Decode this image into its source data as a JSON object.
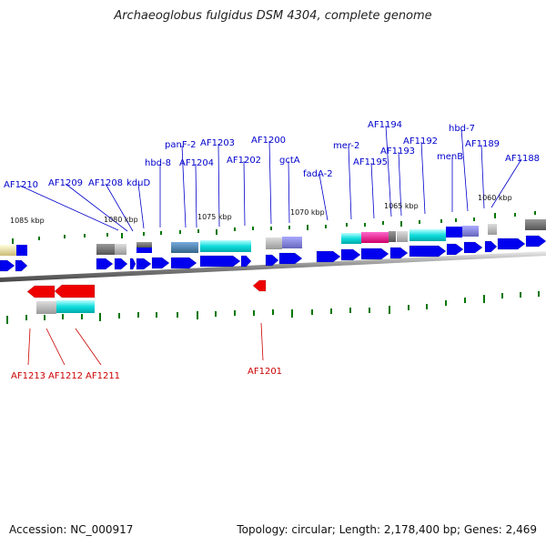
{
  "header": {
    "title": "Archaeoglobus fulgidus DSM 4304, complete genome"
  },
  "footer": {
    "accession": "Accession: NC_000917",
    "summary": "Topology: circular; Length: 2,178,400 bp; Genes: 2,469"
  },
  "colors": {
    "forward_label": "#0000cc",
    "reverse_label": "#cc0000",
    "forward_gene": "#0000ee",
    "reverse_gene": "#ee0000",
    "axis_tick": "#007700",
    "backbone": "#999999"
  },
  "ruler": [
    {
      "label": "1085 kbp"
    },
    {
      "label": "1080 kbp"
    },
    {
      "label": "1075 kbp"
    },
    {
      "label": "1070 kbp"
    },
    {
      "label": "1065 kbp"
    },
    {
      "label": "1060 kbp"
    }
  ],
  "forward_labels": [
    {
      "text": "AF1210"
    },
    {
      "text": "AF1209"
    },
    {
      "text": "AF1208"
    },
    {
      "text": "kduD"
    },
    {
      "text": "hbd-8"
    },
    {
      "text": "panF-2"
    },
    {
      "text": "AF1204"
    },
    {
      "text": "AF1203"
    },
    {
      "text": "AF1202"
    },
    {
      "text": "AF1200"
    },
    {
      "text": "gctA"
    },
    {
      "text": "fadA-2"
    },
    {
      "text": "mer-2"
    },
    {
      "text": "AF1195"
    },
    {
      "text": "AF1194"
    },
    {
      "text": "AF1193"
    },
    {
      "text": "AF1192"
    },
    {
      "text": "menB"
    },
    {
      "text": "hbd-7"
    },
    {
      "text": "AF1189"
    },
    {
      "text": "AF1188"
    }
  ],
  "reverse_labels": [
    {
      "text": "AF1213"
    },
    {
      "text": "AF1212"
    },
    {
      "text": "AF1211"
    },
    {
      "text": "AF1201"
    }
  ]
}
